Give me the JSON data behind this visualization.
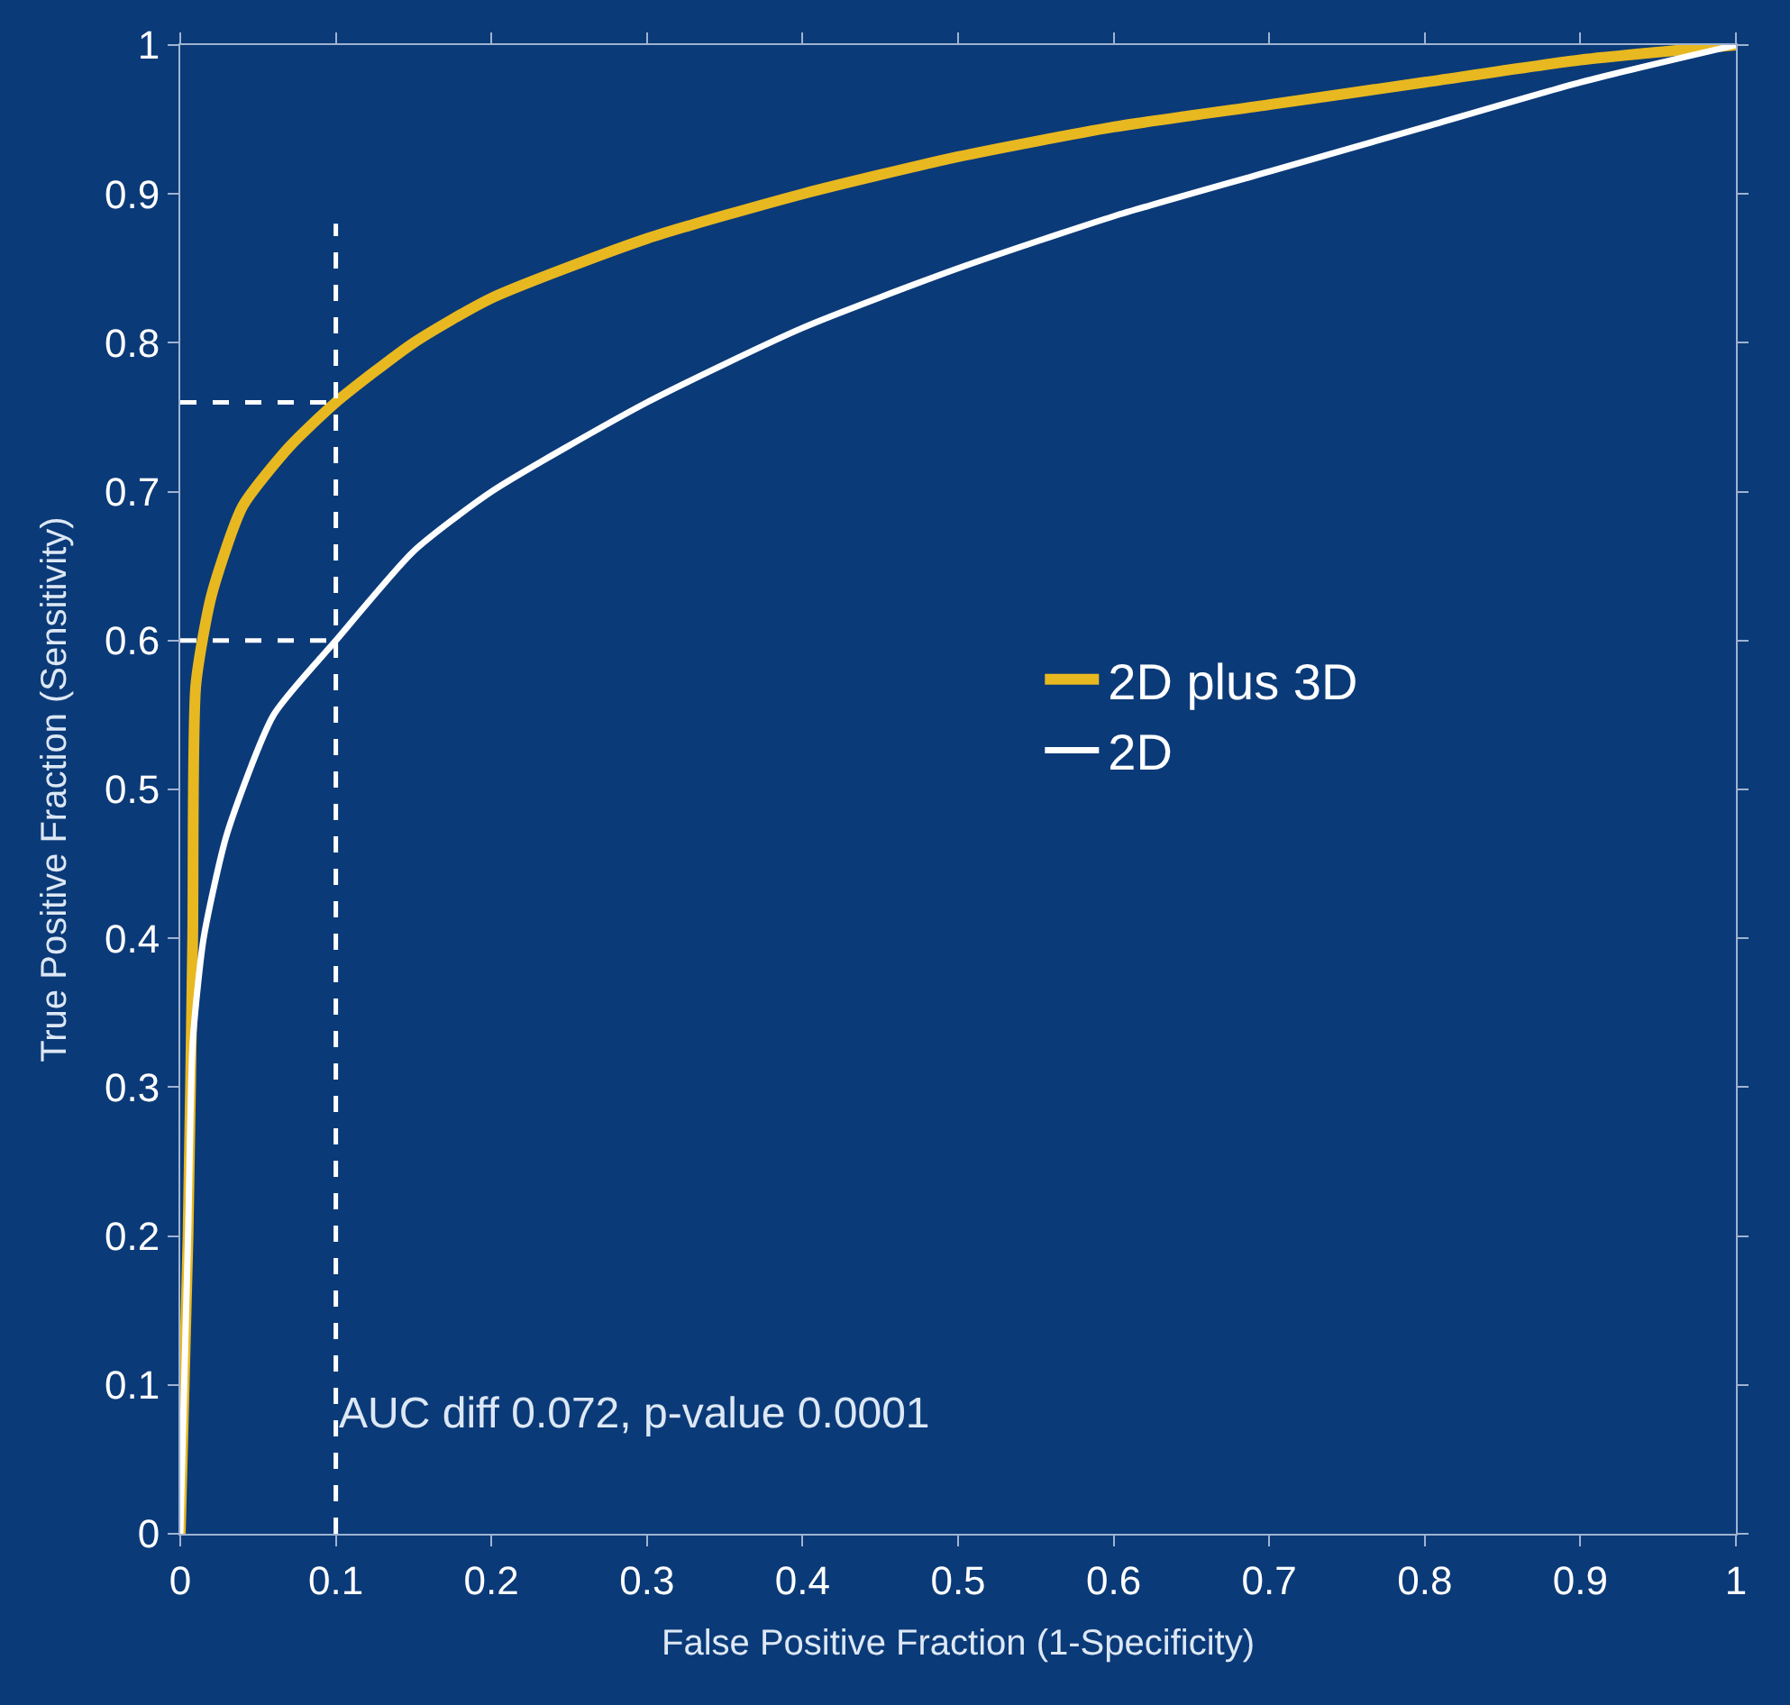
{
  "chart_data": {
    "type": "line",
    "xlabel": "False Positive Fraction (1-Specificity)",
    "ylabel": "True Positive Fraction (Sensitivity)",
    "xlim": [
      0,
      1
    ],
    "ylim": [
      0,
      1
    ],
    "xticks": [
      0,
      0.1,
      0.2,
      0.3,
      0.4,
      0.5,
      0.6,
      0.7,
      0.8,
      0.9,
      1
    ],
    "yticks": [
      0,
      0.1,
      0.2,
      0.3,
      0.4,
      0.5,
      0.6,
      0.7,
      0.8,
      0.9,
      1
    ],
    "grid": false,
    "legend": "right",
    "marker": "none",
    "series": [
      {
        "name": "2D plus 3D",
        "color": "#e8b820",
        "x": [
          0,
          0.005,
          0.008,
          0.01,
          0.02,
          0.04,
          0.07,
          0.1,
          0.15,
          0.2,
          0.3,
          0.4,
          0.5,
          0.6,
          0.7,
          0.8,
          0.9,
          1
        ],
        "values": [
          0,
          0.2,
          0.4,
          0.57,
          0.63,
          0.69,
          0.73,
          0.76,
          0.8,
          0.83,
          0.87,
          0.9,
          0.925,
          0.945,
          0.96,
          0.975,
          0.99,
          1
        ]
      },
      {
        "name": "2D",
        "color": "#ffffff",
        "x": [
          0,
          0.005,
          0.008,
          0.015,
          0.03,
          0.06,
          0.1,
          0.15,
          0.2,
          0.3,
          0.4,
          0.5,
          0.6,
          0.7,
          0.8,
          0.9,
          1
        ],
        "values": [
          0,
          0.2,
          0.33,
          0.4,
          0.47,
          0.55,
          0.6,
          0.66,
          0.7,
          0.76,
          0.81,
          0.85,
          0.885,
          0.915,
          0.945,
          0.975,
          1
        ]
      },
      {
        "color": "#ffffff",
        "line_style": "dashed",
        "x": [
          0.1,
          0.1
        ],
        "values": [
          0,
          0.88
        ]
      },
      {
        "color": "#ffffff",
        "line_style": "dashed",
        "x": [
          0,
          0.1
        ],
        "values": [
          0.76,
          0.76
        ]
      },
      {
        "color": "#ffffff",
        "line_style": "dashed",
        "x": [
          0,
          0.1
        ],
        "values": [
          0.6,
          0.6
        ]
      }
    ],
    "annotations": [
      {
        "text": "AUC diff 0.072, p-value 0.0001",
        "x": 0.1,
        "y": 0.08
      }
    ]
  }
}
